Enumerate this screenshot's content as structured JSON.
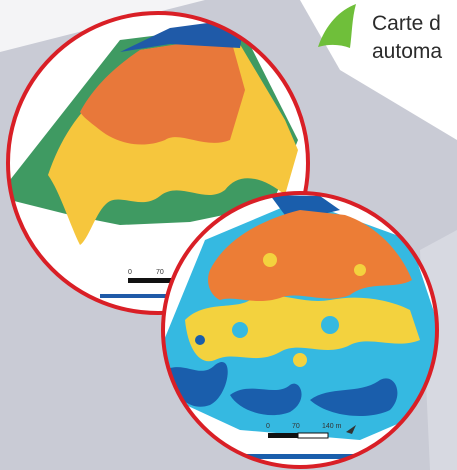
{
  "caption": {
    "line1": "Carte d",
    "line2": "automa"
  },
  "maps": [
    {
      "name": "zoned-map",
      "kind": "zone",
      "scale_labels": [
        "0",
        "70"
      ],
      "colors": {
        "orange": "#e8783a",
        "yellow": "#f6c63d",
        "green": "#3f9a62",
        "blue": "#1f5aa8",
        "border": "#d91f26"
      }
    },
    {
      "name": "modulated-map",
      "kind": "modulation",
      "scale_labels": [
        "0",
        "70",
        "140 m"
      ],
      "colors": {
        "orange": "#ec7d36",
        "yellow": "#f3d23e",
        "cyan": "#35b9e1",
        "blue": "#1a5eac",
        "border": "#d91f26"
      }
    }
  ],
  "accent": {
    "leaf_green": "#6fbf3a",
    "panel_gray": "#c7c9d3"
  }
}
